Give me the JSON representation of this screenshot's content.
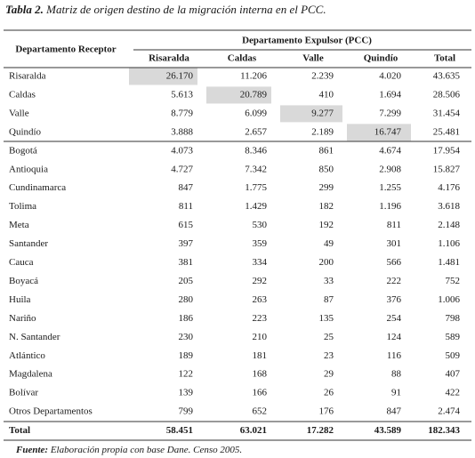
{
  "title": {
    "label": "Tabla 2.",
    "text": "Matriz de origen destino de la migración interna en el PCC."
  },
  "table": {
    "row_header": "Departamento Receptor",
    "group_header": "Departamento Expulsor (PCC)",
    "columns": [
      "Risaralda",
      "Caldas",
      "Valle",
      "Quindío",
      "Total"
    ],
    "rows": [
      [
        "Risaralda",
        "26.170",
        "11.206",
        "2.239",
        "4.020",
        "43.635"
      ],
      [
        "Caldas",
        "5.613",
        "20.789",
        "410",
        "1.694",
        "28.506"
      ],
      [
        "Valle",
        "8.779",
        "6.099",
        "9.277",
        "7.299",
        "31.454"
      ],
      [
        "Quindío",
        "3.888",
        "2.657",
        "2.189",
        "16.747",
        "25.481"
      ],
      [
        "Bogotá",
        "4.073",
        "8.346",
        "861",
        "4.674",
        "17.954"
      ],
      [
        "Antioquia",
        "4.727",
        "7.342",
        "850",
        "2.908",
        "15.827"
      ],
      [
        "Cundinamarca",
        "847",
        "1.775",
        "299",
        "1.255",
        "4.176"
      ],
      [
        "Tolima",
        "811",
        "1.429",
        "182",
        "1.196",
        "3.618"
      ],
      [
        "Meta",
        "615",
        "530",
        "192",
        "811",
        "2.148"
      ],
      [
        "Santander",
        "397",
        "359",
        "49",
        "301",
        "1.106"
      ],
      [
        "Cauca",
        "381",
        "334",
        "200",
        "566",
        "1.481"
      ],
      [
        "Boyacá",
        "205",
        "292",
        "33",
        "222",
        "752"
      ],
      [
        "Huila",
        "280",
        "263",
        "87",
        "376",
        "1.006"
      ],
      [
        "Nariño",
        "186",
        "223",
        "135",
        "254",
        "798"
      ],
      [
        "N. Santander",
        "230",
        "210",
        "25",
        "124",
        "589"
      ],
      [
        "Atlántico",
        "189",
        "181",
        "23",
        "116",
        "509"
      ],
      [
        "Magdalena",
        "122",
        "168",
        "29",
        "88",
        "407"
      ],
      [
        "Bolívar",
        "139",
        "166",
        "26",
        "91",
        "422"
      ],
      [
        "Otros Departamentos",
        "799",
        "652",
        "176",
        "847",
        "2.474"
      ]
    ],
    "total_row": [
      "Total",
      "58.451",
      "63.021",
      "17.282",
      "43.589",
      "182.343"
    ]
  },
  "footnote": {
    "label": "Fuente:",
    "text": "Elaboración propia con base Dane. Censo 2005."
  }
}
